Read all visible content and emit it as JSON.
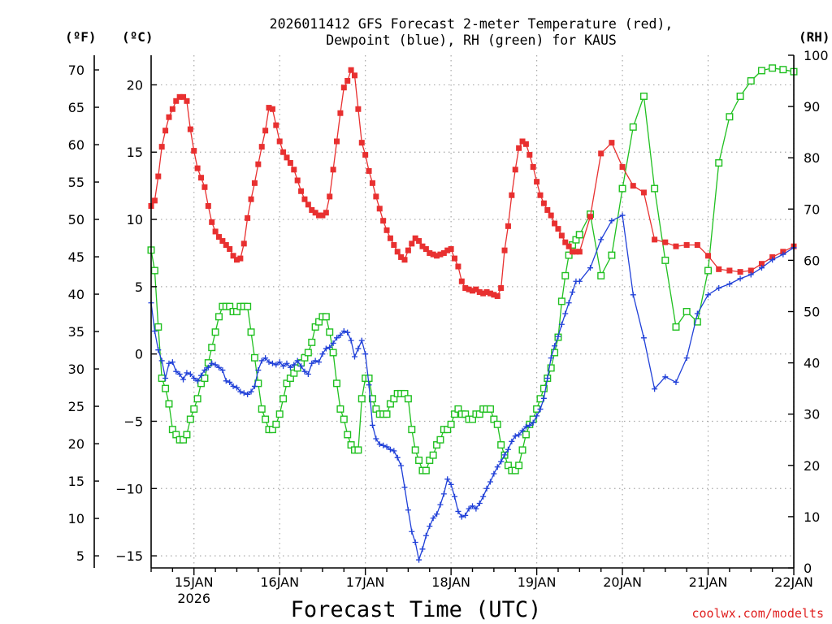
{
  "chart_data": {
    "type": "line",
    "title": "2026011412 GFS Forecast 2-meter Temperature (red),",
    "subtitle": "Dewpoint (blue), RH (green) for KAUS",
    "xlabel": "Forecast Time (UTC)",
    "credit": "coolwx.com/modelts",
    "units": {
      "fahrenheit": "(ºF)",
      "celsius": "(ºC)",
      "rh": "(RH)"
    },
    "xlim": [
      0,
      180
    ],
    "x_unit": "forecast hours from 2026011412",
    "x_tick_hours": [
      12,
      36,
      60,
      84,
      108,
      132,
      156,
      180
    ],
    "x_tick_labels": [
      "15JAN",
      "16JAN",
      "17JAN",
      "18JAN",
      "19JAN",
      "20JAN",
      "21JAN",
      "22JAN"
    ],
    "x_year_label": "2026",
    "ylim_c": [
      -15.9,
      22.2
    ],
    "ylim_rh": [
      0,
      100
    ],
    "y_ticks_c": [
      -15,
      -10,
      -5,
      0,
      5,
      10,
      15,
      20
    ],
    "y_ticks_f": [
      5,
      10,
      15,
      20,
      25,
      30,
      35,
      40,
      45,
      50,
      55,
      60,
      65,
      70
    ],
    "y_ticks_rh": [
      0,
      10,
      20,
      30,
      40,
      50,
      60,
      70,
      80,
      90,
      100
    ],
    "colors": {
      "temperature": "#e83030",
      "dewpoint": "#2040d8",
      "rh": "#20c020"
    },
    "series": [
      {
        "name": "Temperature",
        "unit": "C",
        "hourly_from": 0,
        "values": [
          11.0,
          11.4,
          13.2,
          15.4,
          16.6,
          17.6,
          18.2,
          18.8,
          19.1,
          19.1,
          18.8,
          16.7,
          15.1,
          13.8,
          13.1,
          12.4,
          11.0,
          9.8,
          9.1,
          8.7,
          8.4,
          8.1,
          7.8,
          7.3,
          7.0,
          7.1,
          8.2,
          10.1,
          11.5,
          12.7,
          14.1,
          15.4,
          16.6,
          18.3,
          18.2,
          17.0,
          15.8,
          15.0,
          14.6,
          14.2,
          13.7,
          12.9,
          12.1,
          11.5,
          11.1,
          10.7,
          10.5,
          10.3,
          10.3,
          10.5,
          11.7,
          13.7,
          15.8,
          17.9,
          19.8,
          20.3,
          21.1,
          20.7,
          18.2,
          15.7,
          14.8,
          13.6,
          12.7,
          11.7,
          10.8,
          9.9,
          9.2,
          8.6,
          8.1,
          7.6,
          7.2,
          7.0,
          7.7,
          8.2,
          8.6,
          8.4,
          8.0,
          7.8,
          7.5,
          7.4,
          7.3,
          7.4,
          7.5,
          7.7,
          7.8,
          7.1,
          6.5,
          5.4,
          4.9,
          4.8,
          4.7,
          4.8,
          4.6,
          4.5,
          4.6,
          4.5,
          4.4,
          4.3,
          4.9,
          7.7,
          9.5,
          11.8,
          13.7,
          15.3,
          15.8,
          15.6,
          14.8,
          13.9,
          12.8,
          11.8,
          11.2,
          10.7,
          10.3,
          9.7,
          9.3,
          8.8,
          8.3,
          8.0,
          7.6,
          7.6
        ]
      },
      {
        "name": "Temperature",
        "unit": "C",
        "points": [
          [
            120,
            7.6
          ],
          [
            123,
            10.2
          ],
          [
            126,
            14.9
          ],
          [
            129,
            15.7
          ],
          [
            132,
            13.9
          ],
          [
            135,
            12.5
          ],
          [
            138,
            12.0
          ],
          [
            141,
            8.5
          ],
          [
            144,
            8.3
          ],
          [
            147,
            8.0
          ],
          [
            150,
            8.1
          ],
          [
            153,
            8.1
          ],
          [
            156,
            7.3
          ],
          [
            159,
            6.3
          ],
          [
            162,
            6.2
          ],
          [
            165,
            6.1
          ],
          [
            168,
            6.2
          ],
          [
            171,
            6.7
          ],
          [
            174,
            7.2
          ],
          [
            177,
            7.6
          ],
          [
            180,
            8.0
          ]
        ]
      },
      {
        "name": "Dewpoint",
        "unit": "C",
        "hourly_from": 0,
        "values": [
          3.8,
          1.7,
          0.3,
          -0.5,
          -1.8,
          -0.7,
          -0.6,
          -1.3,
          -1.5,
          -1.9,
          -1.4,
          -1.5,
          -1.8,
          -2.0,
          -1.6,
          -1.2,
          -1.0,
          -0.7,
          -0.8,
          -1.0,
          -1.2,
          -2.0,
          -2.1,
          -2.4,
          -2.5,
          -2.8,
          -2.9,
          -3.0,
          -2.8,
          -2.4,
          -1.2,
          -0.5,
          -0.3,
          -0.6,
          -0.7,
          -0.8,
          -0.6,
          -0.9,
          -0.7,
          -1.0,
          -0.8,
          -0.5,
          -0.9,
          -1.3,
          -1.5,
          -0.7,
          -0.5,
          -0.6,
          0.0,
          0.4,
          0.5,
          0.8,
          1.2,
          1.4,
          1.7,
          1.6,
          1.0,
          -0.2,
          0.4,
          1.0,
          0.0,
          -2.3,
          -5.3,
          -6.3,
          -6.7,
          -6.8,
          -6.9,
          -7.1,
          -7.2,
          -7.7,
          -8.3,
          -9.9,
          -11.6,
          -13.2,
          -14.0,
          -15.3,
          -14.5,
          -13.5,
          -12.8,
          -12.2,
          -11.9,
          -11.2,
          -10.4,
          -9.3,
          -9.7,
          -10.6,
          -11.7,
          -12.1,
          -12.0,
          -11.5,
          -11.3,
          -11.5,
          -11.1,
          -10.6,
          -10.0,
          -9.5,
          -8.9,
          -8.4,
          -8.0,
          -7.5,
          -7.1,
          -6.5,
          -6.1,
          -6.0,
          -5.7,
          -5.4,
          -5.3,
          -5.1,
          -4.6,
          -4.1,
          -3.3,
          -1.8,
          -0.3,
          0.6,
          1.3,
          2.2,
          3.0,
          3.8,
          4.6,
          5.4
        ]
      },
      {
        "name": "Dewpoint",
        "unit": "C",
        "points": [
          [
            120,
            5.4
          ],
          [
            123,
            6.4
          ],
          [
            126,
            8.5
          ],
          [
            129,
            9.9
          ],
          [
            132,
            10.3
          ],
          [
            135,
            4.4
          ],
          [
            138,
            1.2
          ],
          [
            141,
            -2.6
          ],
          [
            144,
            -1.7
          ],
          [
            147,
            -2.1
          ],
          [
            150,
            -0.3
          ],
          [
            153,
            3.0
          ],
          [
            156,
            4.4
          ],
          [
            159,
            4.9
          ],
          [
            162,
            5.2
          ],
          [
            165,
            5.6
          ],
          [
            168,
            5.9
          ],
          [
            171,
            6.4
          ],
          [
            174,
            7.0
          ],
          [
            177,
            7.4
          ],
          [
            180,
            7.9
          ]
        ]
      },
      {
        "name": "RH",
        "unit": "%",
        "hourly_from": 0,
        "values": [
          62,
          58,
          47,
          37,
          35,
          32,
          27,
          26,
          25,
          25,
          26,
          29,
          31,
          33,
          36,
          37,
          40,
          43,
          46,
          49,
          51,
          51,
          51,
          50,
          50,
          51,
          51,
          51,
          46,
          41,
          36,
          31,
          29,
          27,
          27,
          28,
          30,
          33,
          36,
          37,
          38,
          39,
          40,
          41,
          42,
          44,
          47,
          48,
          49,
          49,
          46,
          42,
          36,
          31,
          29,
          26,
          24,
          23,
          23,
          33,
          37,
          37,
          33,
          31,
          30,
          30,
          30,
          32,
          33,
          34,
          34,
          34,
          33,
          27,
          23,
          21,
          19,
          19,
          21,
          22,
          24,
          25,
          27,
          27,
          28,
          30,
          31,
          30,
          30,
          29,
          29,
          30,
          30,
          31,
          31,
          31,
          29,
          28,
          24,
          22,
          20,
          19,
          19,
          20,
          23,
          26,
          28,
          29,
          31,
          33,
          35,
          37,
          39,
          42,
          45,
          52,
          57,
          61,
          63,
          64,
          65
        ]
      },
      {
        "name": "RH",
        "unit": "%",
        "points": [
          [
            120,
            65
          ],
          [
            123,
            69
          ],
          [
            126,
            57
          ],
          [
            129,
            61
          ],
          [
            132,
            74
          ],
          [
            135,
            86
          ],
          [
            138,
            92
          ],
          [
            141,
            74
          ],
          [
            144,
            60
          ],
          [
            147,
            47
          ],
          [
            150,
            50
          ],
          [
            153,
            48
          ],
          [
            156,
            58
          ],
          [
            159,
            79
          ],
          [
            162,
            88
          ],
          [
            165,
            92
          ],
          [
            168,
            95
          ],
          [
            171,
            97
          ],
          [
            174,
            97.5
          ],
          [
            177,
            97.2
          ],
          [
            180,
            96.8
          ]
        ]
      }
    ]
  }
}
